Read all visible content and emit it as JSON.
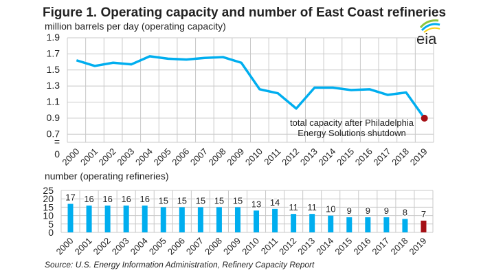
{
  "logo_text": "eia",
  "colors": {
    "line": "#00aeef",
    "bar": "#00aeef",
    "highlight": "#a50f15",
    "grid": "#c8c8c8"
  },
  "chart_data": [
    {
      "type": "line",
      "title": "Figure 1. Operating capacity and number of East Coast refineries",
      "ylabel": "million barrels per day (operating capacity)",
      "x": [
        "2000",
        "2001",
        "2002",
        "2003",
        "2004",
        "2005",
        "2006",
        "2007",
        "2008",
        "2009",
        "2010",
        "2011",
        "2012",
        "2013",
        "2014",
        "2015",
        "2016",
        "2017",
        "2018",
        "2019"
      ],
      "values": [
        1.62,
        1.55,
        1.59,
        1.57,
        1.67,
        1.64,
        1.63,
        1.65,
        1.66,
        1.59,
        1.26,
        1.21,
        1.02,
        1.28,
        1.28,
        1.25,
        1.26,
        1.19,
        1.22,
        0.9
      ],
      "yticks": [
        "1.9",
        "1.7",
        "1.5",
        "1.3",
        "1.1",
        "0.9",
        "0.7",
        "=",
        "0"
      ],
      "ylim": [
        0.6,
        1.9
      ],
      "axis_break": true,
      "grid": true,
      "highlight_point": "2019",
      "annotation": [
        "total capacity after Philadelphia",
        "Energy Solutions shutdown"
      ]
    },
    {
      "type": "bar",
      "ylabel": "number (operating refineries)",
      "categories": [
        "2000",
        "2001",
        "2002",
        "2003",
        "2004",
        "2005",
        "2006",
        "2007",
        "2008",
        "2009",
        "2010",
        "2011",
        "2012",
        "2013",
        "2014",
        "2015",
        "2016",
        "2017",
        "2018",
        "2019"
      ],
      "values": [
        17,
        16,
        16,
        16,
        16,
        15,
        15,
        15,
        15,
        15,
        13,
        14,
        11,
        11,
        10,
        9,
        9,
        9,
        8,
        7
      ],
      "yticks": [
        "25",
        "20",
        "15",
        "10",
        "5",
        "0"
      ],
      "ylim": [
        0,
        25
      ],
      "grid": true,
      "highlight_bar": "2019"
    }
  ],
  "source": "Source: U.S. Energy Information Administration, Refinery Capacity Report"
}
